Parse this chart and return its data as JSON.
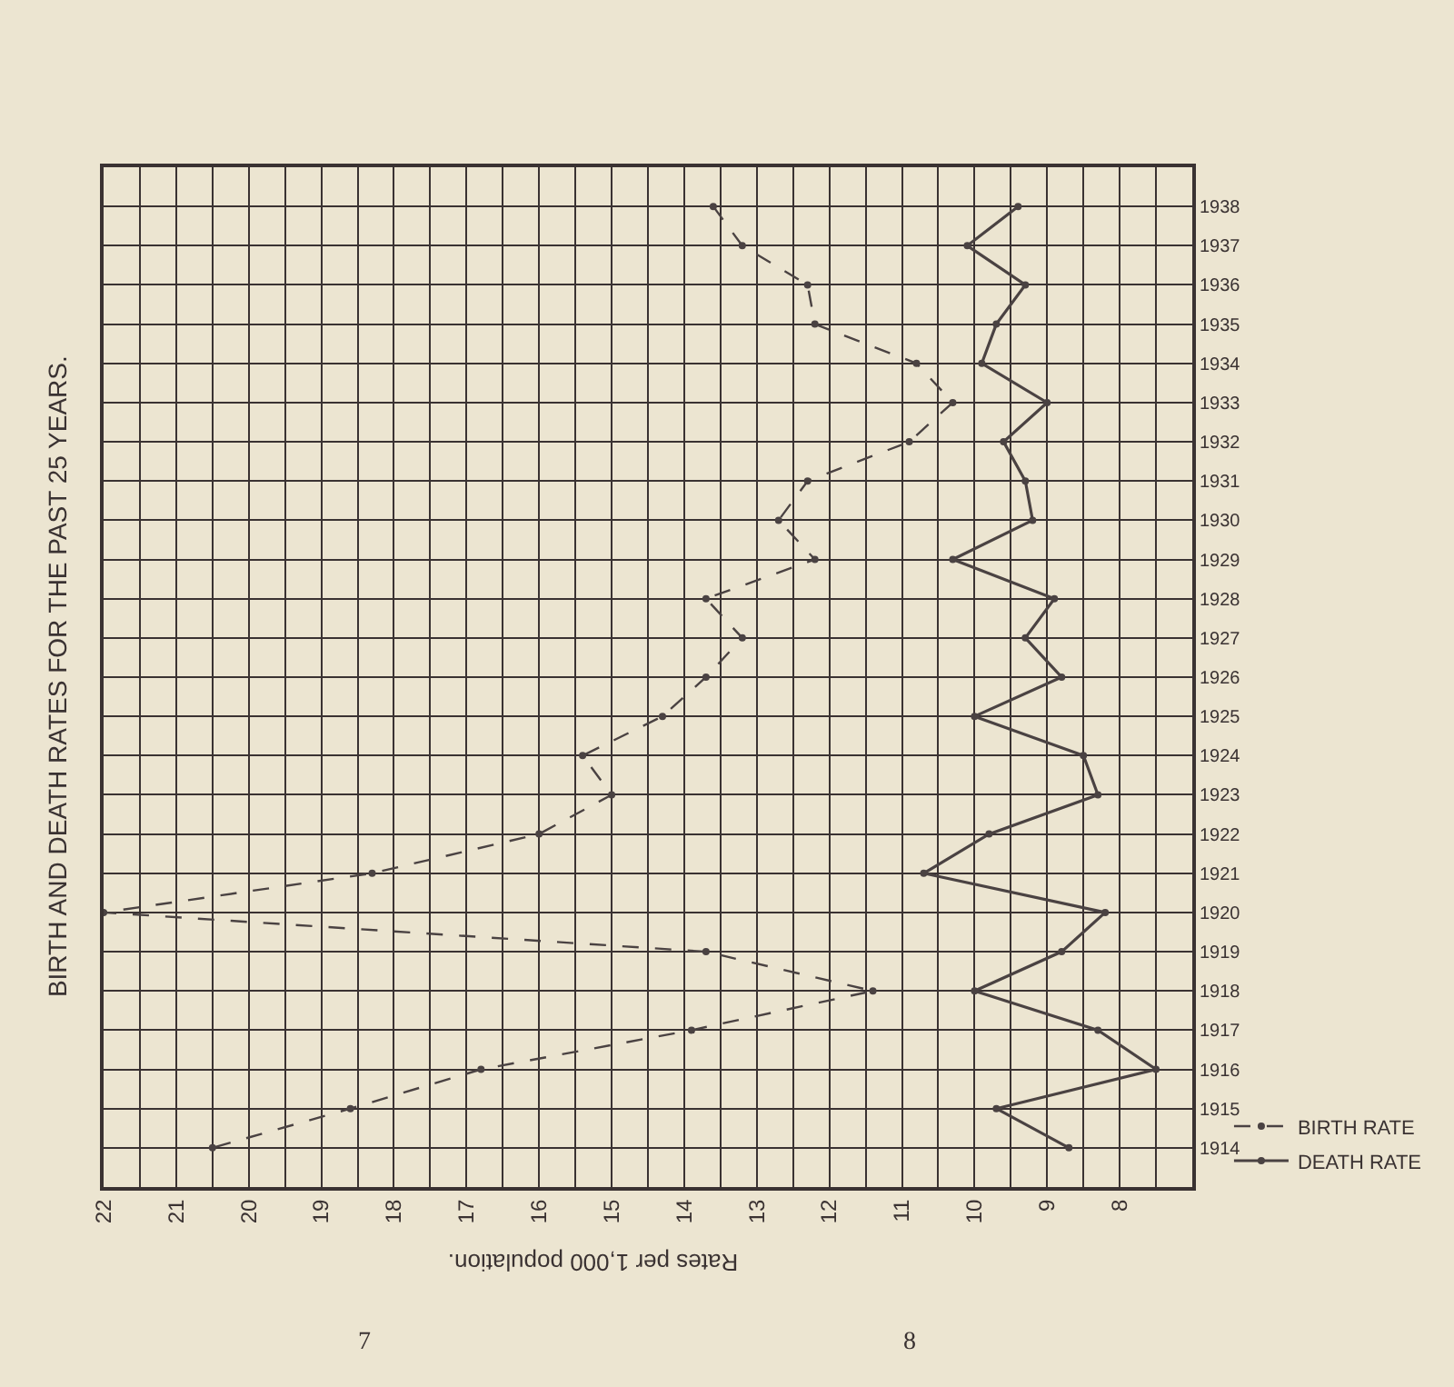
{
  "chart_data": {
    "type": "line",
    "orientation": "horizontal",
    "title": "BIRTH AND DEATH RATES FOR THE PAST 25 YEARS.",
    "xlabel": "Rates per 1,000 population.",
    "categories": [
      "1938",
      "1937",
      "1936",
      "1935",
      "1934",
      "1933",
      "1932",
      "1931",
      "1930",
      "1929",
      "1928",
      "1927",
      "1926",
      "1925",
      "1924",
      "1923",
      "1922",
      "1921",
      "1920",
      "1919",
      "1918",
      "1917",
      "1916",
      "1915",
      "1914"
    ],
    "series": [
      {
        "name": "BIRTH RATE",
        "color": "#4a4242",
        "line_style": "dashed",
        "values": [
          13.6,
          13.2,
          12.3,
          12.2,
          10.8,
          10.3,
          10.9,
          12.3,
          12.7,
          12.2,
          13.7,
          13.2,
          13.7,
          14.3,
          15.4,
          15.0,
          16.0,
          18.3,
          22.0,
          13.7,
          11.4,
          13.9,
          16.8,
          18.6,
          20.5
        ]
      },
      {
        "name": "DEATH RATE",
        "color": "#4a4242",
        "line_style": "solid",
        "values": [
          9.4,
          10.1,
          9.3,
          9.7,
          9.9,
          9.0,
          9.6,
          9.3,
          9.2,
          10.3,
          8.9,
          9.3,
          8.8,
          10.0,
          8.5,
          8.3,
          9.8,
          10.7,
          8.2,
          8.8,
          10.0,
          8.3,
          7.5,
          9.7,
          8.7
        ]
      }
    ],
    "xlim": [
      22,
      7
    ],
    "xticks": [
      22,
      21,
      20,
      19,
      18,
      17,
      16,
      15,
      14,
      13,
      12,
      11,
      10,
      9,
      8
    ],
    "grid": true,
    "marker": "circle",
    "legend": "bottom right",
    "annotations": [
      "7",
      "8"
    ]
  }
}
